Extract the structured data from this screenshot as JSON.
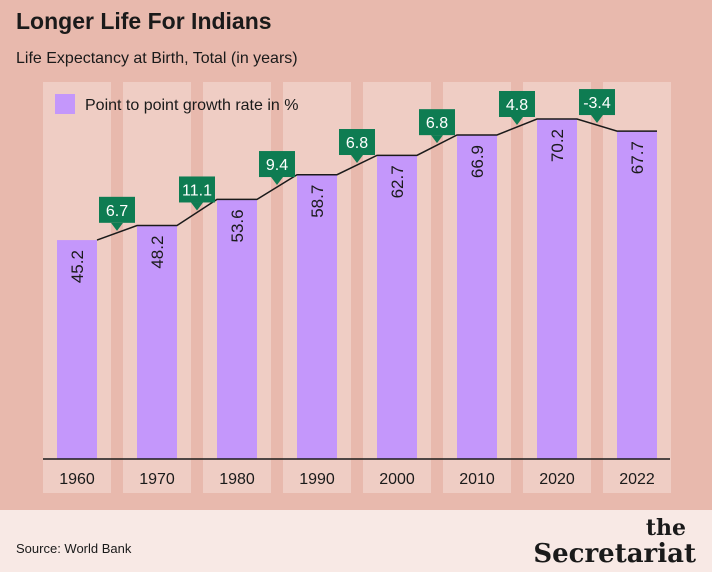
{
  "header": {
    "title": "Longer Life For Indians",
    "subtitle": "Life Expectancy at Birth, Total (in years)"
  },
  "footer": {
    "source": "Source: World Bank",
    "brand_top": "the",
    "brand_name": "Secretariat"
  },
  "colors": {
    "background": "#e8b9ad",
    "column_band": "#efcdc4",
    "bar": "#c497fb",
    "callout": "#0e7c52",
    "callout_text": "#ffffff",
    "text": "#1a1a1a",
    "footer_bg": "#f8e9e5"
  },
  "chart_data": {
    "type": "bar",
    "categories": [
      "1960",
      "1970",
      "1980",
      "1990",
      "2000",
      "2010",
      "2020",
      "2022"
    ],
    "values": [
      45.2,
      48.2,
      53.6,
      58.7,
      62.7,
      66.9,
      70.2,
      67.7
    ],
    "growth_rates": [
      "6.7",
      "11.1",
      "9.4",
      "6.8",
      "6.8",
      "4.8",
      "-3.4"
    ],
    "legend": "Point to point growth rate in %",
    "legend_position": "top-left",
    "ylim": [
      0,
      70.2
    ],
    "title": "Longer Life For Indians",
    "ylabel": "Life Expectancy at Birth, Total (in years)"
  }
}
